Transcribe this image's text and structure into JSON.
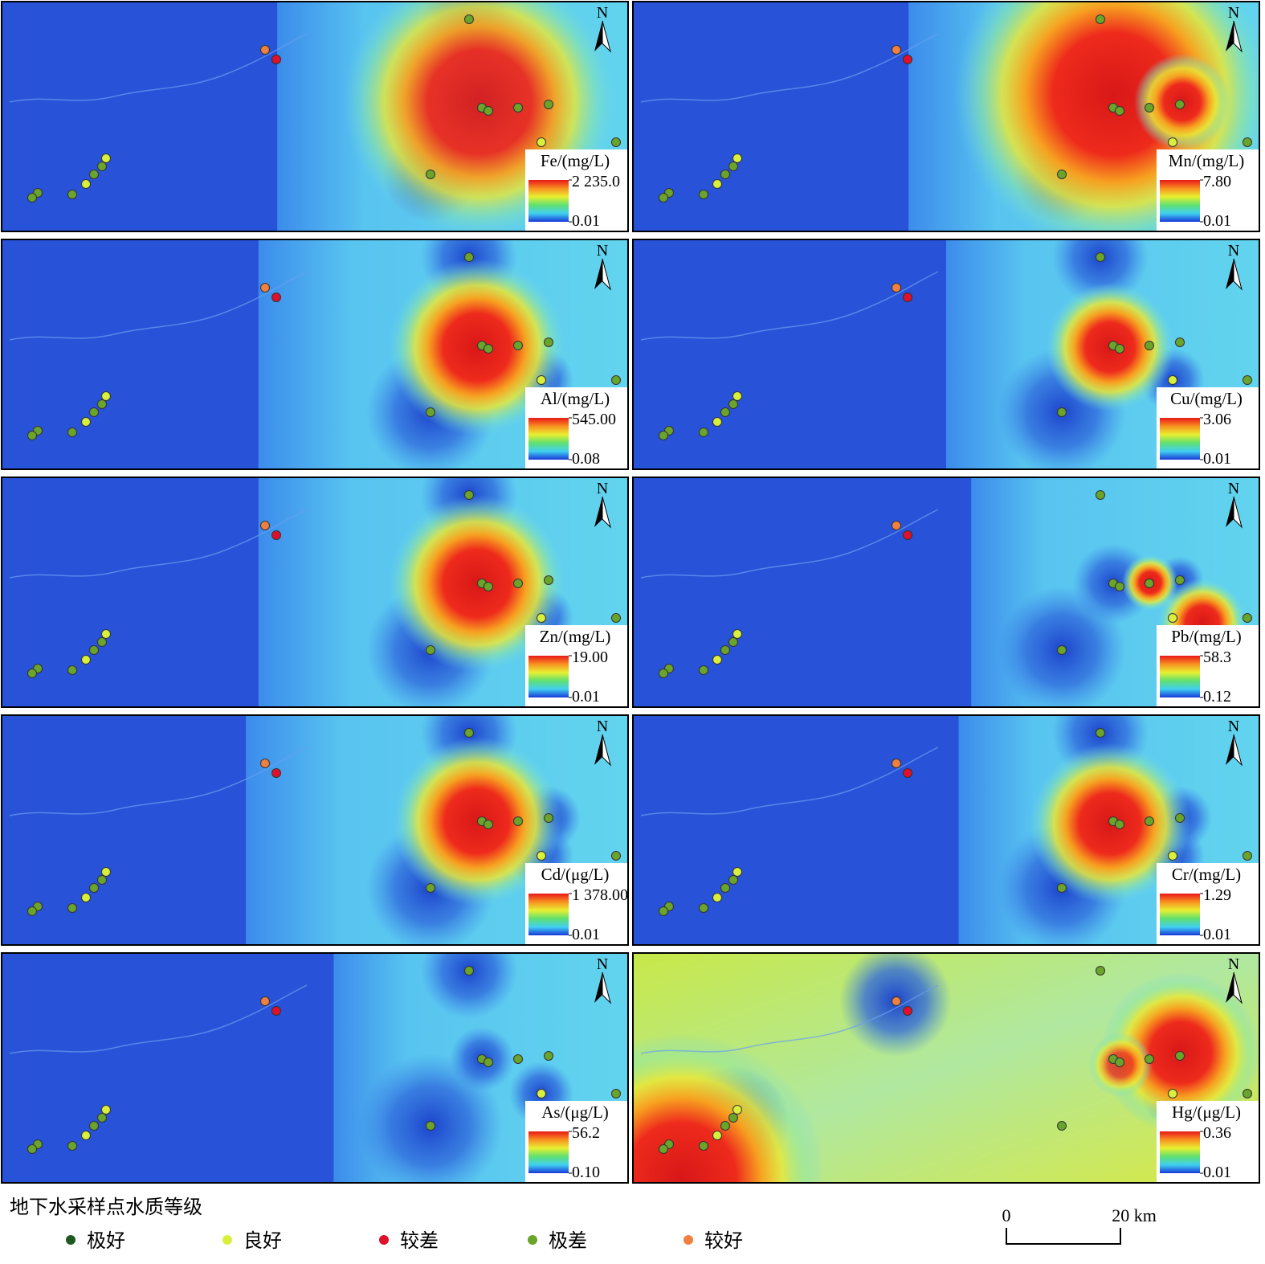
{
  "north": "N",
  "panels": [
    {
      "label": "Fe/(mg/L)",
      "max": {
        "value": 2235.0,
        "label": "2 235.0"
      },
      "min": 0.01
    },
    {
      "label": "Mn/(mg/L)",
      "max": {
        "value": 7.8,
        "label": "7.80"
      },
      "min": 0.01
    },
    {
      "label": "Al/(mg/L)",
      "max": {
        "value": 545.0,
        "label": "545.00"
      },
      "min": 0.08
    },
    {
      "label": "Cu/(mg/L)",
      "max": 3.06,
      "min": 0.01
    },
    {
      "label": "Zn/(mg/L)",
      "max": {
        "value": 19.0,
        "label": "19.00"
      },
      "min": 0.01
    },
    {
      "label": "Pb/(mg/L)",
      "max": 58.3,
      "min": 0.12
    },
    {
      "label": "Cd/(μg/L)",
      "max": {
        "value": 1378.0,
        "label": "1 378.00"
      },
      "min": 0.01
    },
    {
      "label": "Cr/(mg/L)",
      "max": 1.29,
      "min": 0.01
    },
    {
      "label": "As/(μg/L)",
      "max": 56.2,
      "min": {
        "value": 0.1,
        "label": "0.10"
      }
    },
    {
      "label": "Hg/(μg/L)",
      "max": 0.36,
      "min": 0.01
    }
  ],
  "legend": {
    "title": "地下水采样点水质等级",
    "items": [
      {
        "label": "极好",
        "color": "#1d5a1d"
      },
      {
        "label": "良好",
        "color": "#d8f03c"
      },
      {
        "label": "较差",
        "color": "#e0102a"
      },
      {
        "label": "极差",
        "color": "#6aa42a"
      },
      {
        "label": "较好",
        "color": "#f08040"
      }
    ]
  },
  "scale_bar": {
    "start": "0",
    "end": "20 km"
  }
}
